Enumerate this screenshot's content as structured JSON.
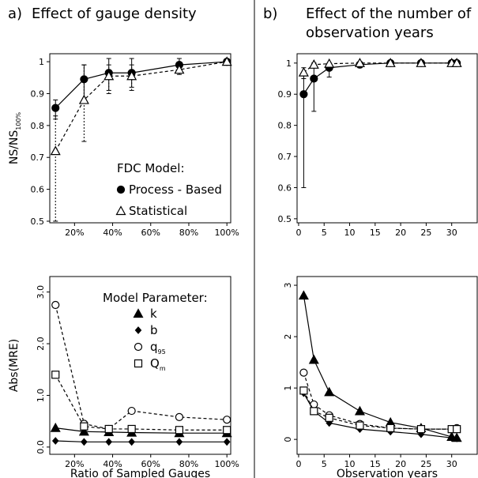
{
  "chart_data": [
    {
      "type": "line",
      "panel_label": "a)",
      "title": "Effect of gauge density",
      "ylabel": "NS/NS",
      "ylabel_sub": "100%",
      "x": [
        10,
        25,
        38,
        50,
        75,
        100
      ],
      "xlim": [
        7,
        102
      ],
      "xticks": [
        {
          "value": 20,
          "label": "20%"
        },
        {
          "value": 40,
          "label": "40%"
        },
        {
          "value": 60,
          "label": "60%"
        },
        {
          "value": 80,
          "label": "80%"
        },
        {
          "value": 100,
          "label": "100%"
        }
      ],
      "ylim": [
        0.495,
        1.025
      ],
      "yticks": [
        0.5,
        0.6,
        0.7,
        0.8,
        0.9,
        1
      ],
      "legend_title": "FDC Model:",
      "series": [
        {
          "name": "Process - Based",
          "marker": "circle",
          "filled": true,
          "dashed": false,
          "color": "#000000",
          "values": [
            0.855,
            0.945,
            0.965,
            0.965,
            0.99,
            1.0
          ],
          "lower": [
            0.82,
            0.87,
            0.91,
            0.92,
            0.97,
            0.995
          ],
          "upper": [
            0.88,
            0.99,
            1.01,
            1.01,
            1.01,
            1.005
          ]
        },
        {
          "name": "Statistical",
          "marker": "triangle",
          "filled": false,
          "dashed": true,
          "color": "#000000",
          "values": [
            0.72,
            0.88,
            0.955,
            0.955,
            0.975,
            1.0
          ],
          "lower": [
            0.5,
            0.75,
            0.9,
            0.91,
            0.96,
            0.995
          ],
          "upper": [
            0.83,
            0.99,
            0.99,
            0.99,
            0.99,
            1.005
          ]
        }
      ]
    },
    {
      "type": "line",
      "panel_label": "b)",
      "title": "Effect of the number of observation years",
      "x": [
        1,
        3,
        6,
        12,
        18,
        24,
        30,
        31
      ],
      "xlim": [
        -0.3,
        35
      ],
      "xticks": [
        0,
        5,
        10,
        15,
        20,
        25,
        30
      ],
      "ylim": [
        0.487,
        1.03
      ],
      "yticks": [
        0.5,
        0.6,
        0.7,
        0.8,
        0.9,
        1
      ],
      "series": [
        {
          "marker": "circle",
          "filled": true,
          "dashed": false,
          "color": "#000000",
          "values": [
            0.9,
            0.95,
            0.985,
            0.995,
            1.0,
            1.0,
            1.0,
            1.0
          ],
          "lower": [
            0.6,
            0.845,
            0.955,
            0.985,
            0.995,
            0.997,
            0.998,
            0.998
          ],
          "upper": [
            0.965,
            1.0,
            1.0,
            1.003,
            1.003,
            1.002,
            1.002,
            1.002
          ]
        },
        {
          "marker": "triangle",
          "filled": false,
          "dashed": true,
          "color": "#000000",
          "values": [
            0.97,
            0.995,
            0.998,
            1.0,
            1.0,
            1.0,
            1.0,
            1.0
          ],
          "lower": [
            0.95,
            0.99,
            0.995,
            0.998,
            0.998,
            0.999,
            0.999,
            0.999
          ],
          "upper": [
            0.985,
            1.0,
            1.0,
            1.002,
            1.002,
            1.001,
            1.001,
            1.001
          ]
        }
      ]
    },
    {
      "type": "line",
      "xlabel": "Ratio of Sampled Gauges",
      "ylabel": "Abs(MRE)",
      "x": [
        10,
        25,
        38,
        50,
        75,
        100
      ],
      "xlim": [
        7,
        102
      ],
      "xticks": [
        {
          "value": 20,
          "label": "20%"
        },
        {
          "value": 40,
          "label": "40%"
        },
        {
          "value": 60,
          "label": "60%"
        },
        {
          "value": 80,
          "label": "80%"
        },
        {
          "value": 100,
          "label": "100%"
        }
      ],
      "ylim": [
        -0.14,
        3.3
      ],
      "yticks": [
        {
          "value": 0,
          "label": "0.0"
        },
        {
          "value": 1,
          "label": "1.0"
        },
        {
          "value": 2,
          "label": "2.0"
        },
        {
          "value": 3,
          "label": "3.0"
        }
      ],
      "ytick_labels_rotated": true,
      "legend_title": "Model Parameter:",
      "series": [
        {
          "name": "k",
          "marker": "triangle",
          "filled": true,
          "dashed": false,
          "color": "#000000",
          "values": [
            0.37,
            0.3,
            0.29,
            0.28,
            0.27,
            0.27
          ]
        },
        {
          "name": "b",
          "marker": "diamond",
          "filled": true,
          "dashed": false,
          "color": "#000000",
          "values": [
            0.12,
            0.1,
            0.1,
            0.1,
            0.1,
            0.1
          ]
        },
        {
          "name": "q",
          "name_sub": "95",
          "marker": "circle",
          "filled": false,
          "dashed": true,
          "color": "#000000",
          "values": [
            2.75,
            0.45,
            0.35,
            0.7,
            0.58,
            0.53
          ]
        },
        {
          "name": "Q",
          "name_sub": "m",
          "marker": "square",
          "filled": false,
          "dashed": true,
          "color": "#000000",
          "values": [
            1.4,
            0.4,
            0.35,
            0.35,
            0.33,
            0.33
          ]
        }
      ]
    },
    {
      "type": "line",
      "xlabel": "Observation years",
      "x": [
        1,
        3,
        6,
        12,
        18,
        24,
        30,
        31
      ],
      "xlim": [
        -0.3,
        35
      ],
      "xticks": [
        0,
        5,
        10,
        15,
        20,
        25,
        30
      ],
      "ylim": [
        -0.29,
        3.17
      ],
      "yticks": [
        0,
        1,
        2,
        3
      ],
      "ytick_labels_rotated": true,
      "series": [
        {
          "marker": "triangle",
          "filled": true,
          "dashed": false,
          "color": "#000000",
          "values": [
            2.8,
            1.55,
            0.92,
            0.55,
            0.33,
            0.22,
            0.05,
            0.03
          ]
        },
        {
          "marker": "diamond",
          "filled": true,
          "dashed": false,
          "color": "#000000",
          "values": [
            0.9,
            0.55,
            0.32,
            0.2,
            0.15,
            0.1,
            0.03,
            0.02
          ]
        },
        {
          "marker": "circle",
          "filled": false,
          "dashed": true,
          "color": "#000000",
          "values": [
            1.3,
            0.68,
            0.47,
            0.3,
            0.22,
            0.2,
            0.2,
            0.22
          ]
        },
        {
          "marker": "square",
          "filled": false,
          "dashed": true,
          "color": "#000000",
          "values": [
            0.95,
            0.55,
            0.42,
            0.27,
            0.22,
            0.2,
            0.2,
            0.2
          ]
        }
      ]
    }
  ]
}
